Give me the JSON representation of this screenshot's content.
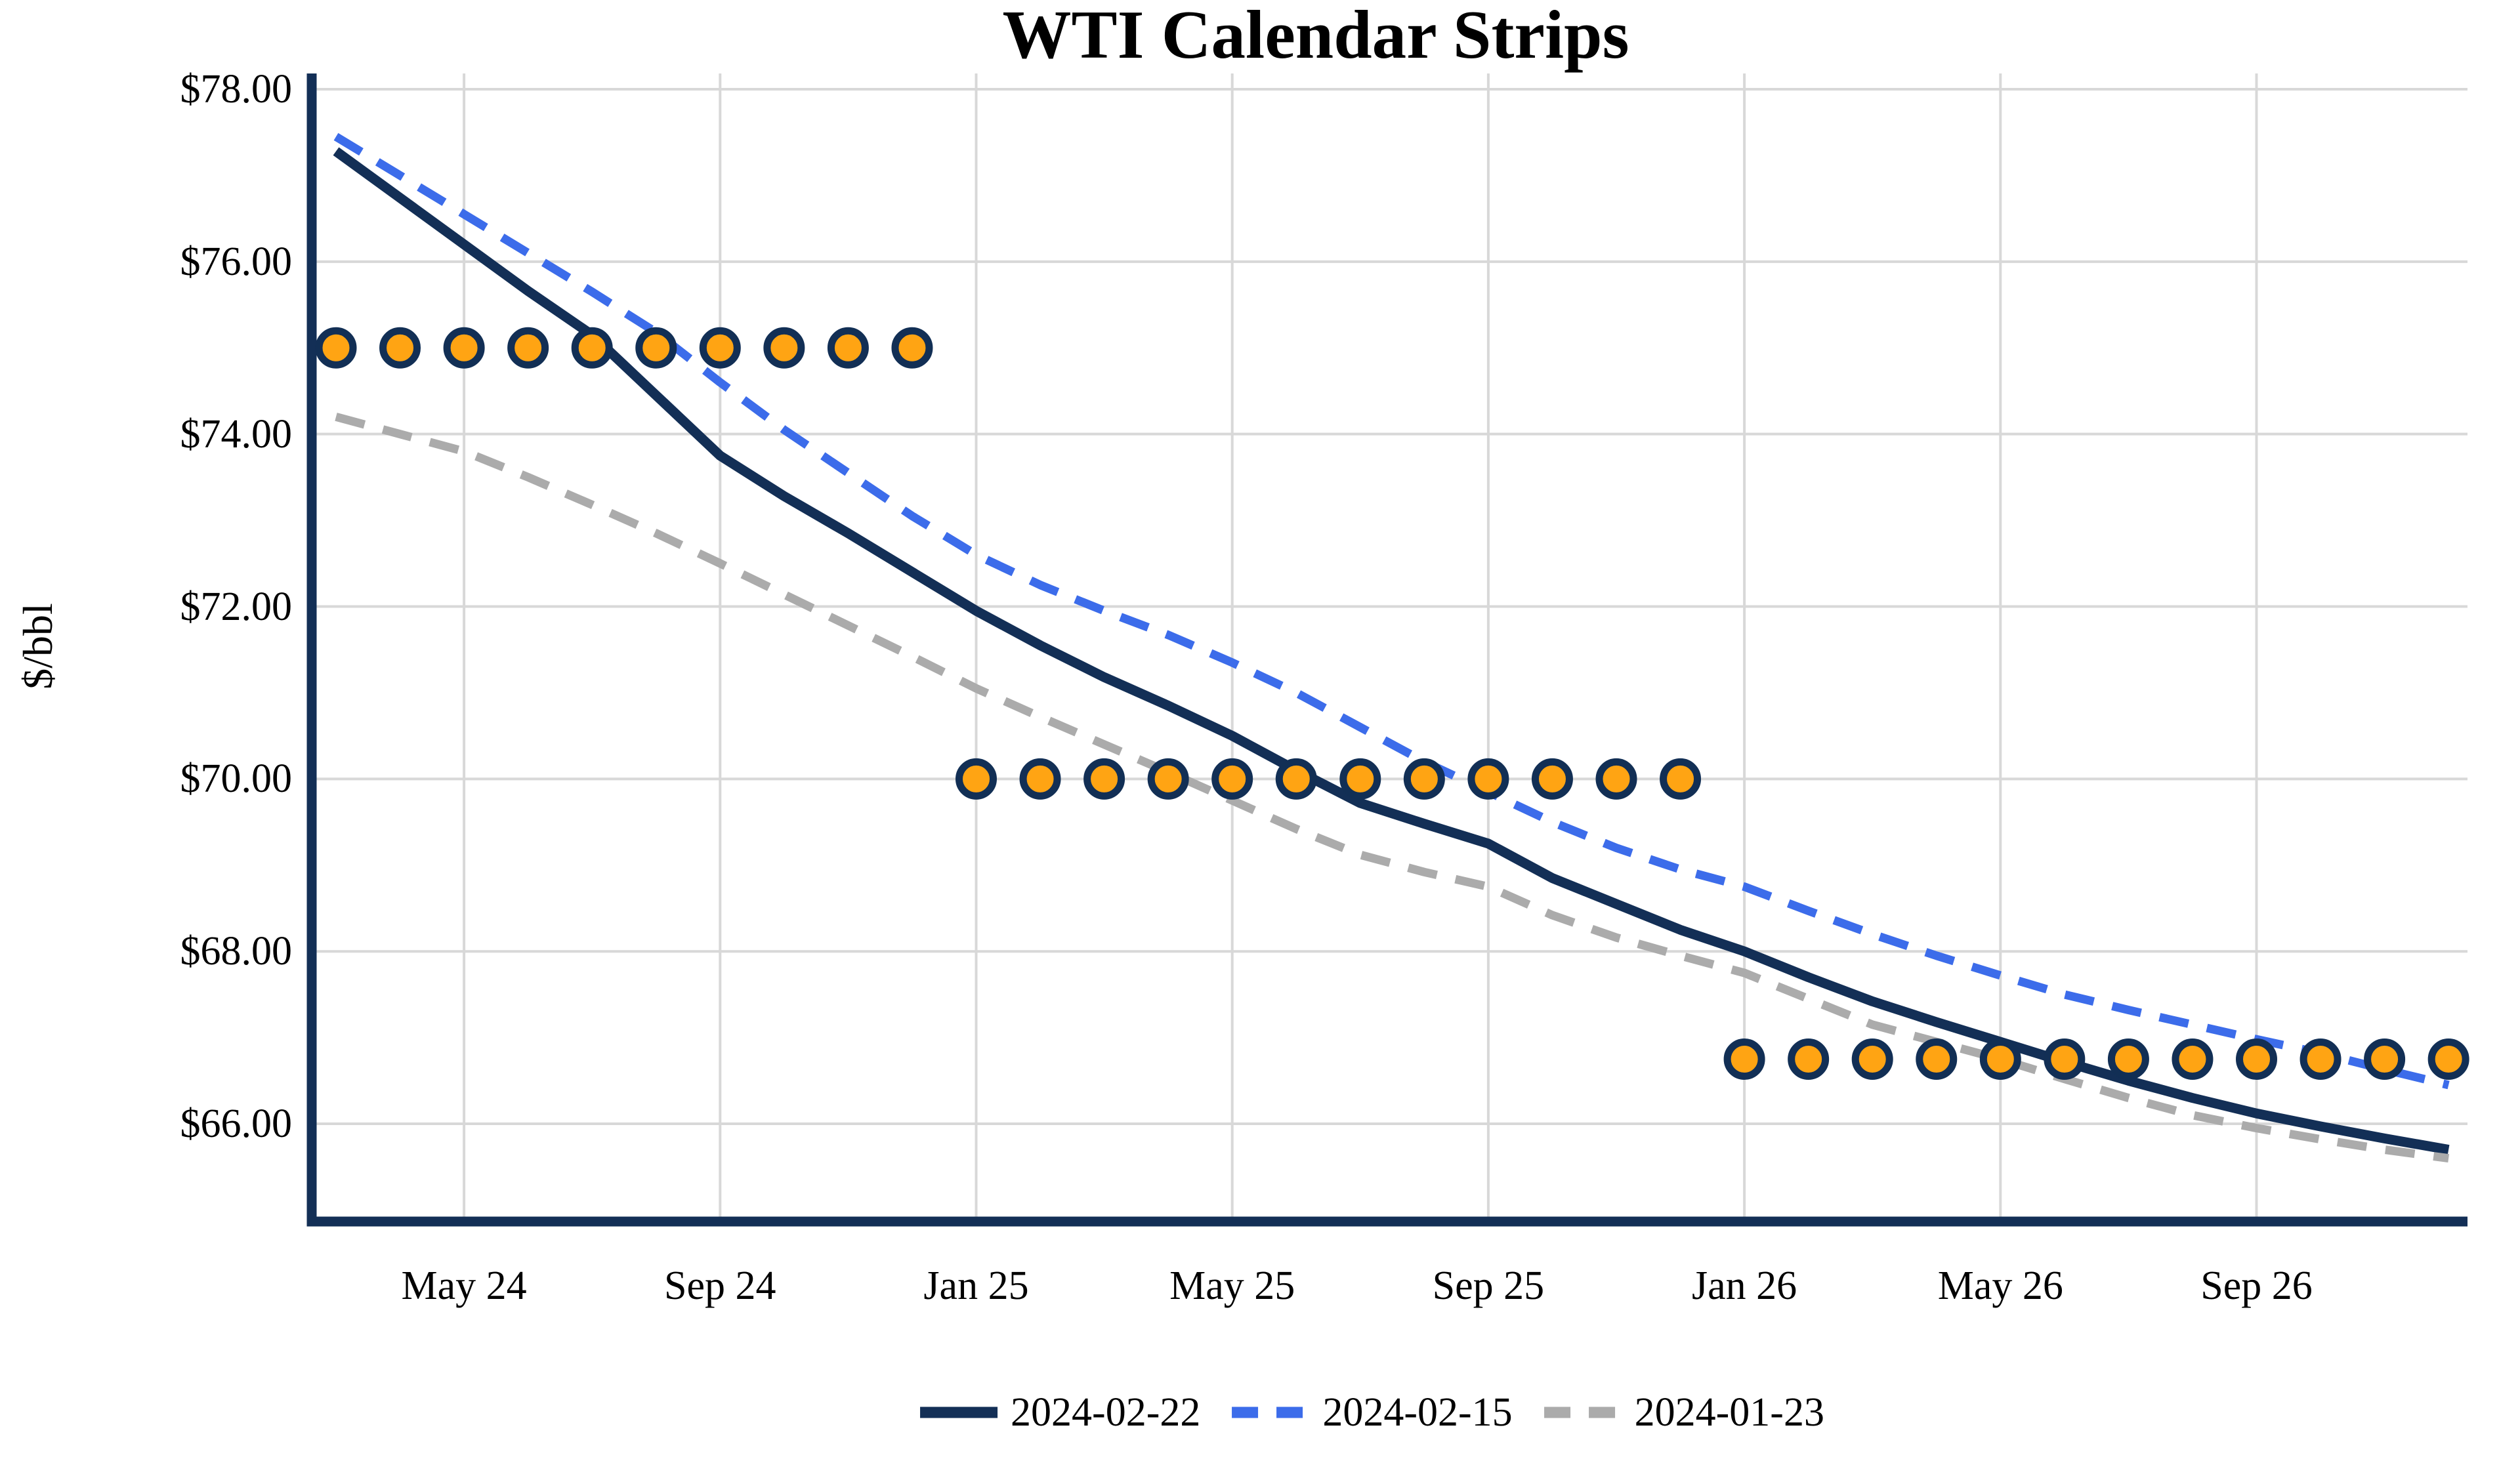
{
  "title": "WTI Calendar Strips",
  "y_axis_title": "$/bbl",
  "colors": {
    "navy": "#132F56",
    "blue": "#3C6CEA",
    "gray": "#ABABAB",
    "gridline": "#D8D8D8",
    "marker_fill": "#FFA413",
    "marker_outline": "#122F55",
    "background": "#FFFFFF"
  },
  "chart_data": {
    "type": "line",
    "title": "WTI Calendar Strips",
    "xlabel": "",
    "ylabel": "$/bbl",
    "ylim": [
      64.8,
      78.2
    ],
    "grid": true,
    "legend_position": "bottom",
    "x": [
      "Mar 24",
      "Apr 24",
      "May 24",
      "Jun 24",
      "Jul 24",
      "Aug 24",
      "Sep 24",
      "Oct 24",
      "Nov 24",
      "Dec 24",
      "Jan 25",
      "Feb 25",
      "Mar 25",
      "Apr 25",
      "May 25",
      "Jun 25",
      "Jul 25",
      "Aug 25",
      "Sep 25",
      "Oct 25",
      "Nov 25",
      "Dec 25",
      "Jan 26",
      "Feb 26",
      "Mar 26",
      "Apr 26",
      "May 26",
      "Jun 26",
      "Jul 26",
      "Aug 26",
      "Sep 26",
      "Oct 26",
      "Nov 26",
      "Dec 26"
    ],
    "y_ticks": [
      {
        "label": "$78.00",
        "value": 78
      },
      {
        "label": "$76.00",
        "value": 76
      },
      {
        "label": "$74.00",
        "value": 74
      },
      {
        "label": "$72.00",
        "value": 72
      },
      {
        "label": "$70.00",
        "value": 70
      },
      {
        "label": "$68.00",
        "value": 68
      },
      {
        "label": "$66.00",
        "value": 66
      }
    ],
    "x_ticks": [
      {
        "label": "May 24",
        "month_index": 2
      },
      {
        "label": "Sep 24",
        "month_index": 6
      },
      {
        "label": "Jan 25",
        "month_index": 10
      },
      {
        "label": "May 25",
        "month_index": 14
      },
      {
        "label": "Sep 25",
        "month_index": 18
      },
      {
        "label": "Jan 26",
        "month_index": 22
      },
      {
        "label": "May 26",
        "month_index": 26
      },
      {
        "label": "Sep 26",
        "month_index": 30
      }
    ],
    "series": [
      {
        "name": "2024-02-22",
        "style": "solid",
        "color": "#132F56",
        "width": 15,
        "values": [
          77.28,
          76.74,
          76.2,
          75.66,
          75.15,
          74.45,
          73.75,
          73.28,
          72.85,
          72.4,
          71.95,
          71.55,
          71.18,
          70.85,
          70.5,
          70.1,
          69.72,
          69.48,
          69.25,
          68.85,
          68.55,
          68.25,
          68.0,
          67.7,
          67.42,
          67.18,
          66.95,
          66.72,
          66.5,
          66.3,
          66.12,
          65.97,
          65.83,
          65.7
        ]
      },
      {
        "name": "2024-02-15",
        "style": "dashed",
        "color": "#3C6CEA",
        "width": 13,
        "values": [
          77.45,
          77.0,
          76.55,
          76.1,
          75.65,
          75.18,
          74.6,
          74.05,
          73.55,
          73.05,
          72.6,
          72.25,
          71.95,
          71.67,
          71.35,
          71.0,
          70.6,
          70.2,
          69.85,
          69.5,
          69.2,
          68.95,
          68.75,
          68.47,
          68.2,
          67.95,
          67.72,
          67.5,
          67.32,
          67.15,
          66.98,
          66.82,
          66.63,
          66.45
        ]
      },
      {
        "name": "2024-01-23",
        "style": "dashed",
        "color": "#ABABAB",
        "width": 13,
        "values": [
          74.2,
          74.0,
          73.8,
          73.5,
          73.18,
          72.85,
          72.5,
          72.14,
          71.78,
          71.42,
          71.05,
          70.72,
          70.4,
          70.08,
          69.75,
          69.42,
          69.12,
          68.92,
          68.75,
          68.42,
          68.16,
          67.95,
          67.75,
          67.45,
          67.15,
          66.95,
          66.75,
          66.52,
          66.3,
          66.1,
          65.95,
          65.82,
          65.7,
          65.6
        ]
      }
    ],
    "markers": {
      "shape": "circle",
      "fill": "#FFA413",
      "outline": "#122F55",
      "rows": [
        {
          "value": 75.0,
          "start_month": "Mar 24",
          "end_month": "Dec 24",
          "start_index": 0,
          "count": 10
        },
        {
          "value": 70.0,
          "start_month": "Jan 25",
          "end_month": "Dec 25",
          "start_index": 10,
          "count": 12
        },
        {
          "value": 66.75,
          "start_month": "Jan 26",
          "end_month": "Dec 26",
          "start_index": 22,
          "count": 12
        }
      ]
    }
  },
  "legend": {
    "entries": [
      {
        "label": "2024-02-22",
        "color": "#132F56",
        "style": "solid"
      },
      {
        "label": "2024-02-15",
        "color": "#3C6CEA",
        "style": "dashed"
      },
      {
        "label": "2024-01-23",
        "color": "#ABABAB",
        "style": "dashed"
      }
    ]
  }
}
